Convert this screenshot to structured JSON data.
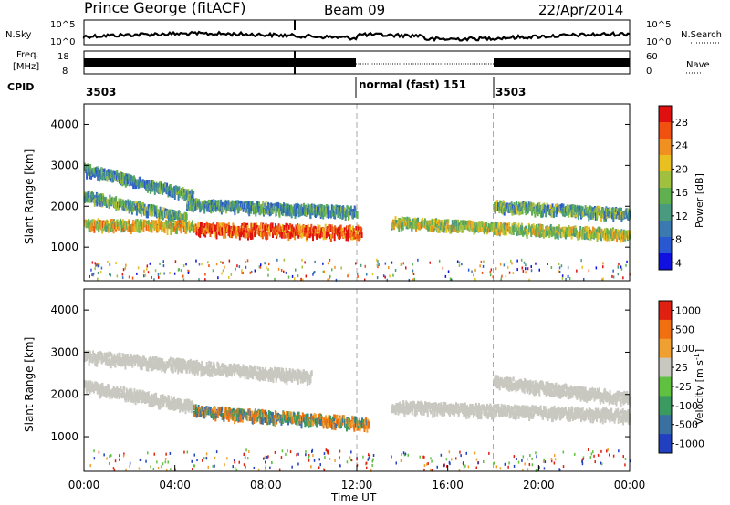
{
  "header": {
    "station": "Prince George (fitACF)",
    "beam": "Beam 09",
    "date": "22/Apr/2014"
  },
  "strip": {
    "nsky_label": "N.Sky",
    "nsky_ticks": [
      "10^5",
      "10^0"
    ],
    "nsearch_label": "N.Search",
    "nsearch_ticks": [
      "10^5",
      "10^0"
    ],
    "freq_label_line1": "Freq.",
    "freq_label_line2": "[MHz]",
    "freq_ticks": [
      "18",
      "8"
    ],
    "nave_label": "Nave",
    "nave_ticks": [
      "60",
      "0"
    ],
    "cpid_label": "CPID",
    "cpid_segments": [
      {
        "label": "3503",
        "start_hour": 0,
        "end_hour": 12
      },
      {
        "label": "normal (fast) 151",
        "start_hour": 12,
        "end_hour": 18
      },
      {
        "label": "3503",
        "start_hour": 18,
        "end_hour": 24
      }
    ]
  },
  "chart_data": [
    {
      "type": "heatmap",
      "panel": "power",
      "ylabel": "Slant Range [km]",
      "xlabel": "",
      "x_range_hours": [
        0,
        24
      ],
      "ylim": [
        180,
        4500
      ],
      "yticks": [
        1000,
        2000,
        3000,
        4000
      ],
      "colorbar": {
        "label": "Power [dB]",
        "ticks": [
          "28",
          "24",
          "20",
          "16",
          "12",
          "8",
          "4"
        ],
        "range": [
          0,
          30
        ],
        "colors": [
          "#1010e0",
          "#2a58d0",
          "#3a7ab0",
          "#4a9a80",
          "#60b050",
          "#a0c040",
          "#e8c020",
          "#f09020",
          "#f05010",
          "#e01010"
        ]
      },
      "bands": [
        {
          "name": "far",
          "start_hour": 0.0,
          "end_hour": 4.8,
          "range_start_km": 2900,
          "range_end_km": 2250,
          "level_db": 10
        },
        {
          "name": "mid",
          "start_hour": 0.0,
          "end_hour": 4.5,
          "range_start_km": 2250,
          "range_end_km": 1700,
          "level_db": 12
        },
        {
          "name": "main",
          "start_hour": 0.0,
          "end_hour": 4.8,
          "range_start_km": 1550,
          "range_end_km": 1500,
          "level_db": 18
        },
        {
          "name": "intense",
          "start_hour": 4.8,
          "end_hour": 12.2,
          "range_start_km": 1450,
          "range_end_km": 1350,
          "level_db": 26
        },
        {
          "name": "upper-mid",
          "start_hour": 4.5,
          "end_hour": 12.0,
          "range_start_km": 2050,
          "range_end_km": 1850,
          "level_db": 10
        },
        {
          "name": "late",
          "start_hour": 13.5,
          "end_hour": 24.0,
          "range_start_km": 1600,
          "range_end_km": 1300,
          "level_db": 16
        },
        {
          "name": "late-upper",
          "start_hour": 18.0,
          "end_hour": 24.0,
          "range_start_km": 2000,
          "range_end_km": 1800,
          "level_db": 12
        }
      ]
    },
    {
      "type": "heatmap",
      "panel": "velocity",
      "ylabel": "Slant Range [km]",
      "xlabel": "Time UT",
      "x_range_hours": [
        0,
        24
      ],
      "xticks": [
        "00:00",
        "04:00",
        "08:00",
        "12:00",
        "16:00",
        "20:00",
        "00:00"
      ],
      "ylim": [
        180,
        4500
      ],
      "yticks": [
        1000,
        2000,
        3000,
        4000
      ],
      "colorbar": {
        "label": "Velocity [m s^-1]",
        "ticks": [
          "1000",
          "500",
          "100",
          "25",
          "-25",
          "-100",
          "-500",
          "-1000"
        ],
        "colors": [
          "#2040c0",
          "#3a70a0",
          "#3a9a60",
          "#60c040",
          "#c8c8c0",
          "#f0a030",
          "#f07010",
          "#e02010"
        ]
      },
      "bands": [
        {
          "name": "ground-scatter-far",
          "start_hour": 0.0,
          "end_hour": 10.0,
          "range_start_km": 2900,
          "range_end_km": 2400,
          "velocity": 0
        },
        {
          "name": "ground-scatter-mid",
          "start_hour": 0.0,
          "end_hour": 4.8,
          "range_start_km": 2200,
          "range_end_km": 1700,
          "velocity": 0
        },
        {
          "name": "ionospheric",
          "start_hour": 4.8,
          "end_hour": 12.5,
          "range_start_km": 1600,
          "range_end_km": 1300,
          "velocity": 150
        },
        {
          "name": "ground-scatter-late",
          "start_hour": 13.5,
          "end_hour": 24.0,
          "range_start_km": 1700,
          "range_end_km": 1500,
          "velocity": 0
        },
        {
          "name": "ground-scatter-late-upper",
          "start_hour": 18.0,
          "end_hour": 24.0,
          "range_start_km": 2300,
          "range_end_km": 1900,
          "velocity": 0
        }
      ]
    }
  ]
}
